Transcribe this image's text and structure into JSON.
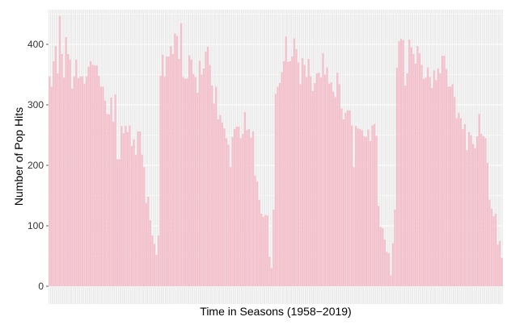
{
  "chart_data": {
    "type": "bar",
    "title": "",
    "xlabel": "Time in Seasons (1958−2019)",
    "ylabel": "Number of Pop Hits",
    "ylim": [
      0,
      450
    ],
    "yticks": [
      0,
      100,
      200,
      300,
      400
    ],
    "ytick_labels": [
      "0",
      "100",
      "200",
      "300",
      "400"
    ],
    "xtick_labels_shown": false,
    "grid": "on (light gray, panel background)",
    "legend": "none",
    "bar_color": "#f4c2cd",
    "panel_color": "#ebebeb",
    "values": [
      347,
      330,
      372,
      397,
      352,
      447,
      384,
      345,
      412,
      384,
      375,
      327,
      347,
      375,
      344,
      347,
      347,
      335,
      347,
      363,
      372,
      366,
      365,
      365,
      348,
      330,
      330,
      307,
      285,
      284,
      312,
      272,
      317,
      210,
      210,
      265,
      253,
      265,
      255,
      266,
      232,
      243,
      217,
      256,
      256,
      218,
      197,
      138,
      148,
      109,
      84,
      70,
      52,
      84,
      348,
      383,
      347,
      380,
      380,
      397,
      384,
      418,
      414,
      376,
      435,
      346,
      343,
      344,
      382,
      375,
      351,
      346,
      320,
      373,
      350,
      360,
      388,
      396,
      366,
      332,
      302,
      330,
      276,
      283,
      271,
      261,
      245,
      234,
      197,
      247,
      260,
      264,
      264,
      245,
      252,
      288,
      258,
      260,
      246,
      256,
      183,
      173,
      143,
      120,
      115,
      118,
      117,
      49,
      30,
      127,
      318,
      330,
      336,
      354,
      372,
      413,
      371,
      372,
      380,
      410,
      392,
      370,
      334,
      377,
      366,
      346,
      376,
      347,
      323,
      336,
      352,
      353,
      345,
      385,
      350,
      362,
      335,
      337,
      322,
      313,
      353,
      334,
      294,
      276,
      287,
      291,
      291,
      266,
      197,
      265,
      261,
      260,
      258,
      248,
      247,
      259,
      240,
      266,
      268,
      249,
      133,
      98,
      96,
      77,
      57,
      55,
      18,
      71,
      127,
      361,
      405,
      409,
      407,
      332,
      352,
      408,
      395,
      384,
      368,
      397,
      385,
      366,
      343,
      345,
      362,
      346,
      328,
      357,
      341,
      360,
      352,
      381,
      381,
      359,
      330,
      330,
      334,
      313,
      278,
      287,
      278,
      260,
      268,
      225,
      255,
      250,
      235,
      228,
      248,
      285,
      252,
      248,
      245,
      204,
      143,
      128,
      116,
      120,
      69,
      75,
      47
    ]
  }
}
